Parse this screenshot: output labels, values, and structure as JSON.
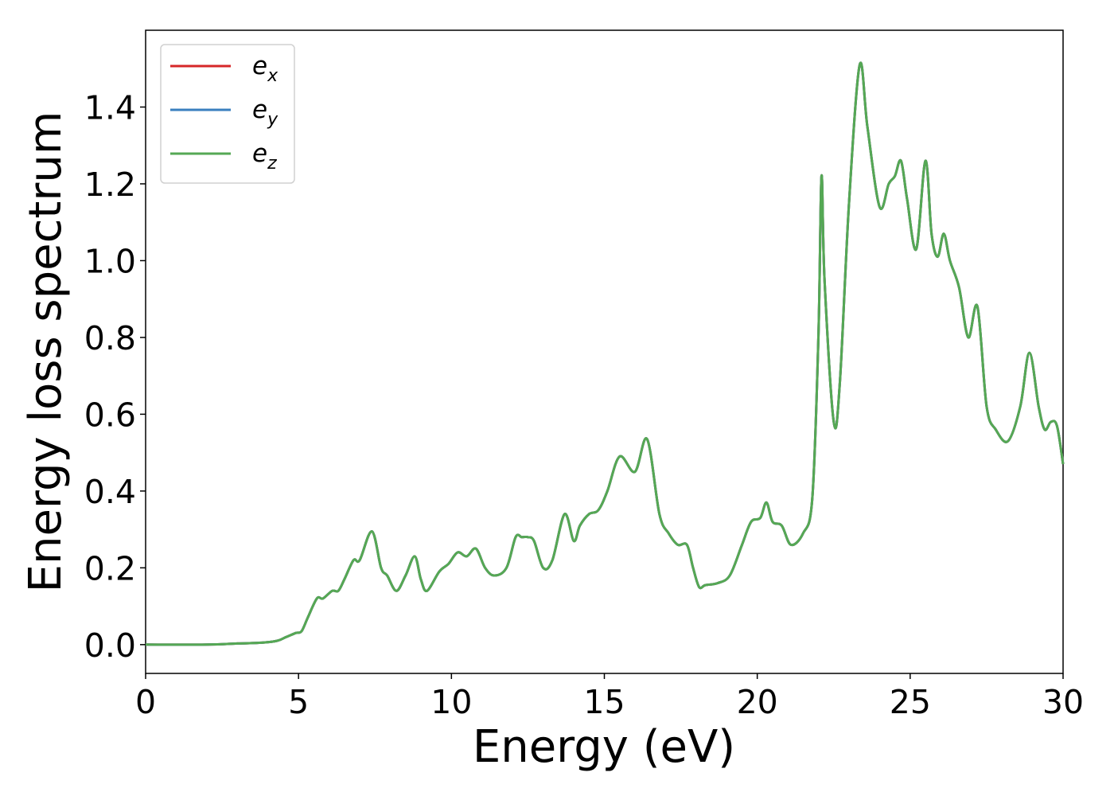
{
  "chart_data": {
    "type": "line",
    "title": "",
    "xlabel": "Energy (eV)",
    "ylabel": "Energy loss spectrum",
    "xlim": [
      0,
      30
    ],
    "ylim": [
      -0.075,
      1.6
    ],
    "xticks": [
      0,
      5,
      10,
      15,
      20,
      25,
      30
    ],
    "xtick_labels": [
      "0",
      "5",
      "10",
      "15",
      "20",
      "25",
      "30"
    ],
    "yticks": [
      0.0,
      0.2,
      0.4,
      0.6,
      0.8,
      1.0,
      1.2,
      1.4
    ],
    "ytick_labels": [
      "0.0",
      "0.2",
      "0.4",
      "0.6",
      "0.8",
      "1.0",
      "1.2",
      "1.4"
    ],
    "grid": false,
    "legend_position": "top-left",
    "series": [
      {
        "name": "e",
        "subscript": "x",
        "color": "#d62728"
      },
      {
        "name": "e",
        "subscript": "y",
        "color": "#3a7fbf"
      },
      {
        "name": "e",
        "subscript": "z",
        "color": "#55a854"
      }
    ],
    "shared_curve": {
      "x": [
        0,
        2,
        3,
        3.8,
        4.3,
        4.6,
        4.9,
        5.1,
        5.3,
        5.6,
        5.8,
        6.1,
        6.3,
        6.5,
        6.8,
        7.0,
        7.4,
        7.7,
        7.9,
        8.2,
        8.5,
        8.8,
        9.0,
        9.2,
        9.6,
        9.9,
        10.2,
        10.5,
        10.8,
        11.1,
        11.4,
        11.8,
        12.1,
        12.3,
        12.5,
        12.7,
        13.0,
        13.3,
        13.7,
        14.0,
        14.2,
        14.5,
        14.8,
        15.1,
        15.5,
        16.0,
        16.4,
        16.8,
        17.1,
        17.4,
        17.7,
        17.9,
        18.1,
        18.3,
        18.7,
        19.1,
        19.5,
        19.8,
        20.1,
        20.3,
        20.5,
        20.8,
        21.1,
        21.5,
        21.8,
        22.0,
        22.1,
        22.2,
        22.5,
        22.7,
        23.0,
        23.35,
        23.6,
        24.0,
        24.3,
        24.5,
        24.7,
        24.9,
        25.2,
        25.5,
        25.7,
        25.9,
        26.1,
        26.3,
        26.6,
        26.9,
        27.2,
        27.5,
        27.8,
        28.2,
        28.6,
        28.9,
        29.2,
        29.4,
        29.6,
        29.8,
        30.0
      ],
      "y": [
        0.0,
        0.0,
        0.003,
        0.005,
        0.01,
        0.02,
        0.03,
        0.035,
        0.07,
        0.12,
        0.12,
        0.14,
        0.14,
        0.17,
        0.22,
        0.22,
        0.295,
        0.2,
        0.18,
        0.14,
        0.18,
        0.23,
        0.17,
        0.14,
        0.19,
        0.21,
        0.24,
        0.23,
        0.25,
        0.2,
        0.18,
        0.2,
        0.28,
        0.28,
        0.28,
        0.27,
        0.2,
        0.22,
        0.34,
        0.27,
        0.31,
        0.34,
        0.35,
        0.4,
        0.49,
        0.45,
        0.535,
        0.34,
        0.29,
        0.26,
        0.26,
        0.2,
        0.15,
        0.155,
        0.16,
        0.18,
        0.26,
        0.32,
        0.33,
        0.37,
        0.32,
        0.31,
        0.26,
        0.29,
        0.38,
        0.8,
        1.22,
        0.95,
        0.58,
        0.68,
        1.15,
        1.51,
        1.35,
        1.14,
        1.2,
        1.22,
        1.26,
        1.16,
        1.03,
        1.26,
        1.07,
        1.01,
        1.07,
        1.0,
        0.93,
        0.8,
        0.88,
        0.62,
        0.56,
        0.53,
        0.62,
        0.76,
        0.62,
        0.56,
        0.58,
        0.57,
        0.47
      ]
    }
  }
}
